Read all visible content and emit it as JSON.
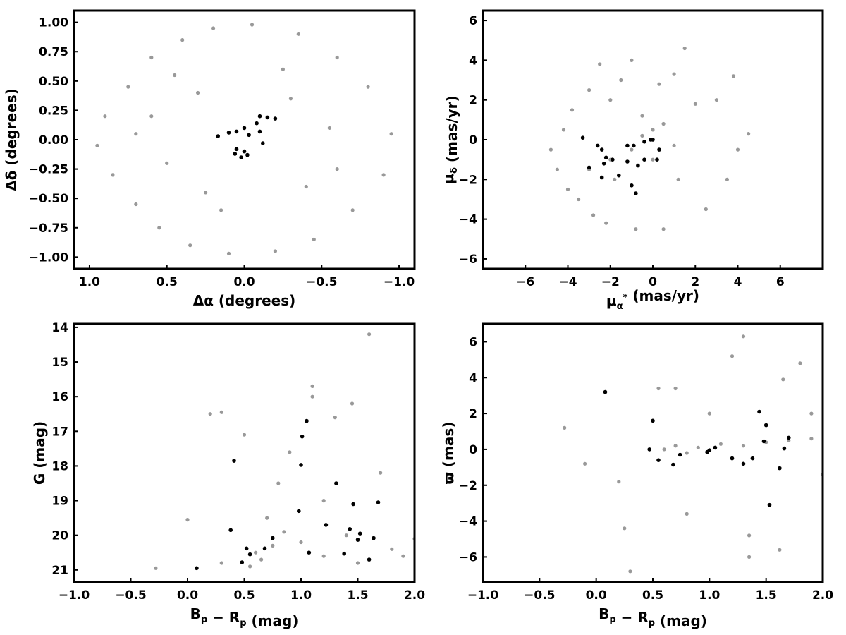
{
  "colors": {
    "field": "#999999",
    "members": "#000000"
  },
  "chart_data": [
    {
      "id": "sky",
      "type": "scatter",
      "xlabel": "Δα (degrees)",
      "ylabel": "Δδ (degrees)",
      "xlim": [
        1.1,
        -1.1
      ],
      "ylim": [
        -1.1,
        1.1
      ],
      "xticks": [
        1.0,
        0.5,
        0.0,
        -0.5,
        -1.0
      ],
      "xtick_labels": [
        "1.0",
        "0.5",
        "0.0",
        "−0.5",
        "−1.0"
      ],
      "yticks": [
        -1.0,
        -0.75,
        -0.5,
        -0.25,
        0.0,
        0.25,
        0.5,
        0.75,
        1.0
      ],
      "ytick_labels": [
        "−1.00",
        "−0.75",
        "−0.50",
        "−0.25",
        "0.00",
        "0.25",
        "0.50",
        "0.75",
        "1.00"
      ],
      "series": [
        {
          "color": "#999999",
          "points": [
            [
              0.9,
              0.2
            ],
            [
              0.85,
              -0.3
            ],
            [
              0.75,
              0.45
            ],
            [
              0.7,
              -0.55
            ],
            [
              0.6,
              0.7
            ],
            [
              0.55,
              -0.75
            ],
            [
              0.4,
              0.85
            ],
            [
              0.35,
              -0.9
            ],
            [
              0.2,
              0.95
            ],
            [
              0.1,
              -0.97
            ],
            [
              -0.05,
              0.98
            ],
            [
              -0.2,
              -0.95
            ],
            [
              -0.35,
              0.9
            ],
            [
              -0.45,
              -0.85
            ],
            [
              -0.6,
              0.7
            ],
            [
              -0.7,
              -0.6
            ],
            [
              -0.8,
              0.45
            ],
            [
              -0.9,
              -0.3
            ],
            [
              -0.95,
              0.05
            ],
            [
              0.95,
              -0.05
            ],
            [
              0.6,
              0.2
            ],
            [
              0.5,
              -0.2
            ],
            [
              0.3,
              0.4
            ],
            [
              0.25,
              -0.45
            ],
            [
              -0.3,
              0.35
            ],
            [
              -0.4,
              -0.4
            ],
            [
              -0.55,
              0.1
            ],
            [
              0.45,
              0.55
            ],
            [
              -0.25,
              0.6
            ],
            [
              0.15,
              -0.6
            ],
            [
              -0.6,
              -0.25
            ],
            [
              0.7,
              0.05
            ]
          ]
        },
        {
          "color": "#000000",
          "points": [
            [
              0.17,
              0.03
            ],
            [
              0.1,
              0.06
            ],
            [
              0.05,
              0.07
            ],
            [
              0.0,
              0.1
            ],
            [
              -0.03,
              0.04
            ],
            [
              -0.08,
              0.14
            ],
            [
              -0.1,
              0.2
            ],
            [
              -0.15,
              0.19
            ],
            [
              -0.2,
              0.18
            ],
            [
              -0.1,
              0.07
            ],
            [
              -0.12,
              -0.03
            ],
            [
              0.06,
              -0.12
            ],
            [
              0.02,
              -0.15
            ],
            [
              0.0,
              -0.1
            ],
            [
              -0.02,
              -0.13
            ],
            [
              0.05,
              -0.08
            ]
          ]
        }
      ]
    },
    {
      "id": "pm",
      "type": "scatter",
      "xlabel": "μα* (mas/yr)",
      "ylabel": "μδ (mas/yr)",
      "xlim": [
        -8,
        8
      ],
      "ylim": [
        -6.5,
        6.5
      ],
      "xticks": [
        -6,
        -4,
        -2,
        0,
        2,
        4,
        6
      ],
      "xtick_labels": [
        "−6",
        "−4",
        "−2",
        "0",
        "2",
        "4",
        "6"
      ],
      "yticks": [
        -6,
        -4,
        -2,
        0,
        2,
        4,
        6
      ],
      "ytick_labels": [
        "−6",
        "−4",
        "−2",
        "0",
        "2",
        "4",
        "6"
      ],
      "series": [
        {
          "color": "#999999",
          "points": [
            [
              -4.8,
              -0.5
            ],
            [
              -4.5,
              -1.5
            ],
            [
              -4.2,
              0.5
            ],
            [
              -4,
              -2.5
            ],
            [
              -3.8,
              1.5
            ],
            [
              -3.5,
              -3
            ],
            [
              -3,
              2.5
            ],
            [
              -2.8,
              -3.8
            ],
            [
              -2.5,
              3.8
            ],
            [
              -2.2,
              -4.2
            ],
            [
              -2,
              2
            ],
            [
              -1.8,
              -2
            ],
            [
              -1.5,
              3
            ],
            [
              -1,
              4
            ],
            [
              -0.8,
              -4.5
            ],
            [
              -0.5,
              1.2
            ],
            [
              0,
              0.5
            ],
            [
              0,
              -1
            ],
            [
              0.3,
              2.8
            ],
            [
              0.5,
              -4.5
            ],
            [
              1,
              3.3
            ],
            [
              1.2,
              -2
            ],
            [
              1.5,
              4.6
            ],
            [
              2,
              1.8
            ],
            [
              2.5,
              -3.5
            ],
            [
              3,
              2
            ],
            [
              3.5,
              -2
            ],
            [
              3.8,
              3.2
            ],
            [
              4,
              -0.5
            ],
            [
              4.5,
              0.3
            ],
            [
              -3,
              -1.5
            ],
            [
              -2,
              -1
            ],
            [
              -1,
              -0.5
            ],
            [
              -0.5,
              0.2
            ],
            [
              0.5,
              0.8
            ],
            [
              1,
              -0.3
            ]
          ]
        },
        {
          "color": "#000000",
          "points": [
            [
              -3.3,
              0.1
            ],
            [
              -3,
              -1.4
            ],
            [
              -2.6,
              -0.3
            ],
            [
              -2.4,
              -0.5
            ],
            [
              -2.3,
              -1.2
            ],
            [
              -2.4,
              -1.9
            ],
            [
              -2.2,
              -0.9
            ],
            [
              -1.9,
              -1
            ],
            [
              -1.6,
              -1.8
            ],
            [
              -1.2,
              -1.1
            ],
            [
              -1.2,
              -0.3
            ],
            [
              -0.9,
              -0.3
            ],
            [
              -0.7,
              -1.3
            ],
            [
              -1,
              -2.3
            ],
            [
              -0.8,
              -2.7
            ],
            [
              -0.4,
              -1
            ],
            [
              -0.4,
              -0.1
            ],
            [
              -0.1,
              0
            ],
            [
              0,
              0
            ],
            [
              0.2,
              -1
            ],
            [
              0.3,
              -0.5
            ]
          ]
        }
      ]
    },
    {
      "id": "cmd",
      "type": "scatter",
      "xlabel": "Bp − Rp (mag)",
      "ylabel": "G (mag)",
      "xlim": [
        -1.0,
        2.0
      ],
      "ylim": [
        21.35,
        13.9
      ],
      "xticks": [
        -1.0,
        -0.5,
        0.0,
        0.5,
        1.0,
        1.5,
        2.0
      ],
      "xtick_labels": [
        "−1.0",
        "−0.5",
        "0.0",
        "0.5",
        "1.0",
        "1.5",
        "2.0"
      ],
      "yticks": [
        14,
        15,
        16,
        17,
        18,
        19,
        20,
        21
      ],
      "ytick_labels": [
        "14",
        "15",
        "16",
        "17",
        "18",
        "19",
        "20",
        "21"
      ],
      "series": [
        {
          "color": "#999999",
          "points": [
            [
              -0.28,
              20.95
            ],
            [
              0.0,
              19.55
            ],
            [
              0.2,
              16.5
            ],
            [
              0.3,
              16.45
            ],
            [
              0.5,
              17.1
            ],
            [
              0.6,
              20.5
            ],
            [
              0.7,
              19.5
            ],
            [
              0.8,
              18.5
            ],
            [
              0.9,
              17.6
            ],
            [
              1.0,
              20.2
            ],
            [
              1.1,
              16.0
            ],
            [
              1.1,
              15.7
            ],
            [
              1.2,
              19.0
            ],
            [
              1.3,
              16.6
            ],
            [
              1.4,
              20.0
            ],
            [
              1.45,
              16.2
            ],
            [
              1.5,
              20.8
            ],
            [
              1.6,
              14.2
            ],
            [
              1.7,
              18.2
            ],
            [
              1.8,
              20.4
            ],
            [
              1.9,
              20.6
            ],
            [
              2.0,
              20.1
            ],
            [
              0.55,
              20.9
            ],
            [
              0.65,
              20.7
            ],
            [
              0.75,
              20.3
            ],
            [
              0.85,
              19.9
            ],
            [
              0.3,
              20.8
            ],
            [
              1.2,
              20.6
            ]
          ]
        },
        {
          "color": "#000000",
          "points": [
            [
              0.08,
              20.95
            ],
            [
              0.38,
              19.85
            ],
            [
              0.48,
              20.78
            ],
            [
              0.52,
              20.38
            ],
            [
              0.55,
              20.55
            ],
            [
              0.68,
              20.38
            ],
            [
              0.75,
              20.08
            ],
            [
              0.41,
              17.85
            ],
            [
              0.98,
              19.3
            ],
            [
              1.0,
              17.97
            ],
            [
              1.01,
              17.15
            ],
            [
              1.05,
              16.7
            ],
            [
              1.07,
              20.5
            ],
            [
              1.22,
              19.7
            ],
            [
              1.31,
              18.5
            ],
            [
              1.38,
              20.53
            ],
            [
              1.43,
              19.82
            ],
            [
              1.46,
              19.1
            ],
            [
              1.5,
              20.13
            ],
            [
              1.52,
              19.95
            ],
            [
              1.6,
              20.7
            ],
            [
              1.64,
              20.08
            ],
            [
              1.68,
              19.05
            ]
          ]
        }
      ]
    },
    {
      "id": "plx",
      "type": "scatter",
      "xlabel": "Bp − Rp (mag)",
      "ylabel": "ϖ (mas)",
      "xlim": [
        -1.0,
        2.0
      ],
      "ylim": [
        -7.4,
        7.0
      ],
      "xticks": [
        -1.0,
        -0.5,
        0.0,
        0.5,
        1.0,
        1.5,
        2.0
      ],
      "xtick_labels": [
        "−1.0",
        "−0.5",
        "0.0",
        "0.5",
        "1.0",
        "1.5",
        "2.0"
      ],
      "yticks": [
        -6,
        -4,
        -2,
        0,
        2,
        4,
        6
      ],
      "ytick_labels": [
        "−6",
        "−4",
        "−2",
        "0",
        "2",
        "4",
        "6"
      ],
      "series": [
        {
          "color": "#999999",
          "points": [
            [
              -0.28,
              1.2
            ],
            [
              -0.1,
              -0.8
            ],
            [
              0.2,
              -1.8
            ],
            [
              0.25,
              -4.4
            ],
            [
              0.3,
              -6.8
            ],
            [
              0.55,
              3.4
            ],
            [
              0.7,
              3.4
            ],
            [
              0.8,
              -3.6
            ],
            [
              1.0,
              2.0
            ],
            [
              1.2,
              5.2
            ],
            [
              1.3,
              6.3
            ],
            [
              1.35,
              -4.8
            ],
            [
              1.35,
              -6.0
            ],
            [
              1.62,
              -5.6
            ],
            [
              1.8,
              4.8
            ],
            [
              1.65,
              3.9
            ],
            [
              1.9,
              2.0
            ],
            [
              2.0,
              -1.4
            ],
            [
              0.6,
              0.0
            ],
            [
              0.7,
              0.2
            ],
            [
              0.8,
              -0.2
            ],
            [
              0.9,
              0.1
            ],
            [
              1.1,
              0.3
            ],
            [
              1.3,
              0.2
            ],
            [
              1.5,
              0.4
            ],
            [
              1.7,
              0.5
            ],
            [
              1.9,
              0.6
            ]
          ]
        },
        {
          "color": "#000000",
          "points": [
            [
              0.08,
              3.2
            ],
            [
              0.47,
              0.0
            ],
            [
              0.5,
              1.6
            ],
            [
              0.55,
              -0.6
            ],
            [
              0.68,
              -0.85
            ],
            [
              0.74,
              -0.3
            ],
            [
              0.98,
              -0.15
            ],
            [
              1.0,
              -0.05
            ],
            [
              1.05,
              0.1
            ],
            [
              1.2,
              -0.5
            ],
            [
              1.3,
              -0.8
            ],
            [
              1.38,
              -0.5
            ],
            [
              1.44,
              2.1
            ],
            [
              1.48,
              0.45
            ],
            [
              1.5,
              1.35
            ],
            [
              1.53,
              -3.1
            ],
            [
              1.62,
              -1.05
            ],
            [
              1.66,
              0.05
            ],
            [
              1.7,
              0.65
            ]
          ]
        }
      ]
    }
  ]
}
